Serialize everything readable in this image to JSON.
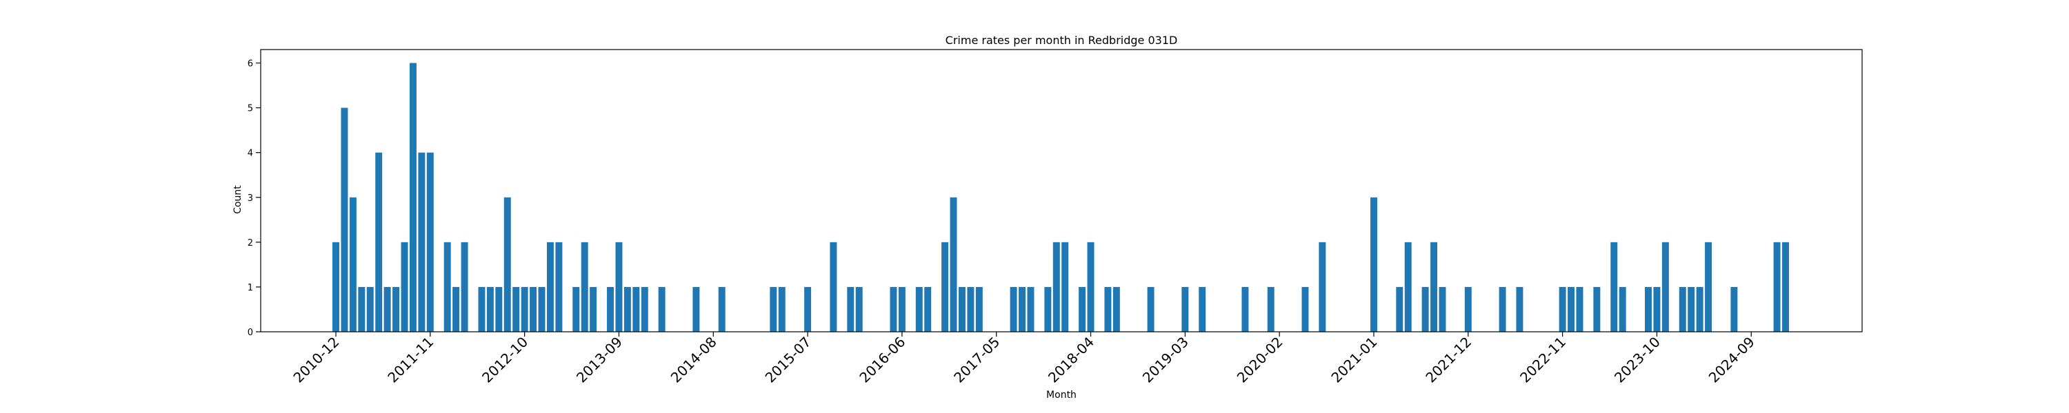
{
  "chart_data": {
    "type": "bar",
    "title": "Crime rates per month in Redbridge 031D",
    "xlabel": "Month",
    "ylabel": "Count",
    "ylim": [
      0,
      6.3
    ],
    "yticks": [
      0,
      1,
      2,
      3,
      4,
      5,
      6
    ],
    "xticks": [
      "2010-12",
      "2011-11",
      "2012-10",
      "2013-09",
      "2014-08",
      "2015-07",
      "2016-06",
      "2017-05",
      "2018-04",
      "2019-03",
      "2020-02",
      "2021-01",
      "2021-12",
      "2022-11",
      "2023-10",
      "2024-09"
    ],
    "grid": false,
    "bar_color": "#1f77b4",
    "series": [
      {
        "x": [
          "2010-12",
          "2011-01",
          "2011-02",
          "2011-03",
          "2011-04",
          "2011-05",
          "2011-06",
          "2011-07",
          "2011-08",
          "2011-09",
          "2011-10",
          "2011-11",
          "2012-01",
          "2012-02",
          "2012-03",
          "2012-05",
          "2012-06",
          "2012-07",
          "2012-08",
          "2012-09",
          "2012-10",
          "2012-11",
          "2012-12",
          "2013-01",
          "2013-02",
          "2013-04",
          "2013-05",
          "2013-06",
          "2013-08",
          "2013-09",
          "2013-10",
          "2013-11",
          "2013-12",
          "2014-02",
          "2014-06",
          "2014-09",
          "2015-03",
          "2015-04",
          "2015-07",
          "2015-10",
          "2015-12",
          "2016-01",
          "2016-05",
          "2016-06",
          "2016-08",
          "2016-09",
          "2016-11",
          "2016-12",
          "2017-01",
          "2017-02",
          "2017-03",
          "2017-07",
          "2017-08",
          "2017-09",
          "2017-11",
          "2017-12",
          "2018-01",
          "2018-03",
          "2018-04",
          "2018-06",
          "2018-07",
          "2018-11",
          "2019-03",
          "2019-05",
          "2019-10",
          "2020-01",
          "2020-05",
          "2020-07",
          "2021-01",
          "2021-04",
          "2021-05",
          "2021-07",
          "2021-08",
          "2021-09",
          "2021-12",
          "2022-04",
          "2022-06",
          "2022-11",
          "2022-12",
          "2023-01",
          "2023-03",
          "2023-05",
          "2023-06",
          "2023-09",
          "2023-10",
          "2023-11",
          "2024-01",
          "2024-02",
          "2024-03",
          "2024-04",
          "2024-07",
          "2024-12",
          "2025-01"
        ],
        "values": [
          2,
          5,
          3,
          1,
          1,
          4,
          1,
          1,
          2,
          6,
          4,
          4,
          2,
          1,
          2,
          1,
          1,
          1,
          3,
          1,
          1,
          1,
          1,
          2,
          2,
          1,
          2,
          1,
          1,
          2,
          1,
          1,
          1,
          1,
          1,
          1,
          1,
          1,
          1,
          2,
          1,
          1,
          1,
          1,
          1,
          1,
          2,
          3,
          1,
          1,
          1,
          1,
          1,
          1,
          1,
          2,
          2,
          1,
          2,
          1,
          1,
          1,
          1,
          1,
          1,
          1,
          1,
          2,
          3,
          1,
          2,
          1,
          2,
          1,
          1,
          1,
          1,
          1,
          1,
          1,
          1,
          2,
          1,
          1,
          1,
          2,
          1,
          1,
          1,
          2,
          1,
          2,
          2
        ]
      }
    ]
  }
}
